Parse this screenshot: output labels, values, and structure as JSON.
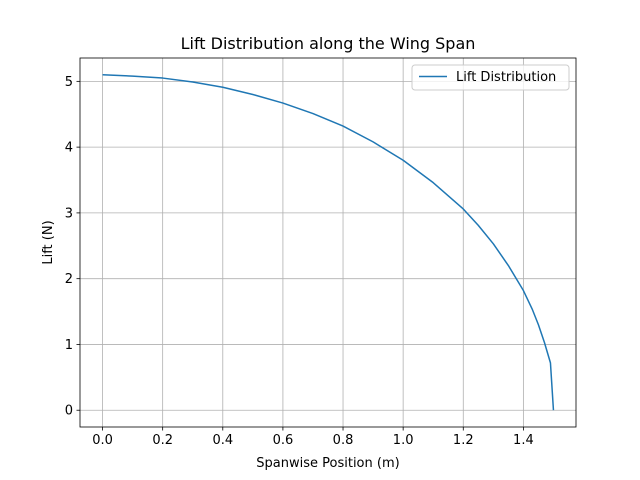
{
  "chart_data": {
    "type": "line",
    "title": "Lift Distribution along the Wing Span",
    "xlabel": "Spanwise Position (m)",
    "ylabel": "Lift (N)",
    "xlim": [
      -0.075,
      1.575
    ],
    "ylim": [
      -0.255,
      5.355
    ],
    "xticks": [
      0.0,
      0.2,
      0.4,
      0.6,
      0.8,
      1.0,
      1.2,
      1.4
    ],
    "xtick_labels": [
      "0.0",
      "0.2",
      "0.4",
      "0.6",
      "0.8",
      "1.0",
      "1.2",
      "1.4"
    ],
    "yticks": [
      0,
      1,
      2,
      3,
      4,
      5
    ],
    "ytick_labels": [
      "0",
      "1",
      "2",
      "3",
      "4",
      "5"
    ],
    "grid": true,
    "legend_position": "top-right",
    "series": [
      {
        "name": "Lift Distribution",
        "color": "#1f77b4",
        "x": [
          0.0,
          0.1,
          0.2,
          0.3,
          0.4,
          0.5,
          0.6,
          0.7,
          0.8,
          0.9,
          1.0,
          1.1,
          1.2,
          1.25,
          1.3,
          1.35,
          1.4,
          1.43,
          1.45,
          1.47,
          1.49,
          1.5
        ],
        "y": [
          5.1,
          5.08,
          5.05,
          4.99,
          4.91,
          4.8,
          4.67,
          4.51,
          4.32,
          4.08,
          3.8,
          3.46,
          3.06,
          2.81,
          2.53,
          2.2,
          1.82,
          1.53,
          1.3,
          1.03,
          0.72,
          0.0
        ]
      }
    ]
  }
}
